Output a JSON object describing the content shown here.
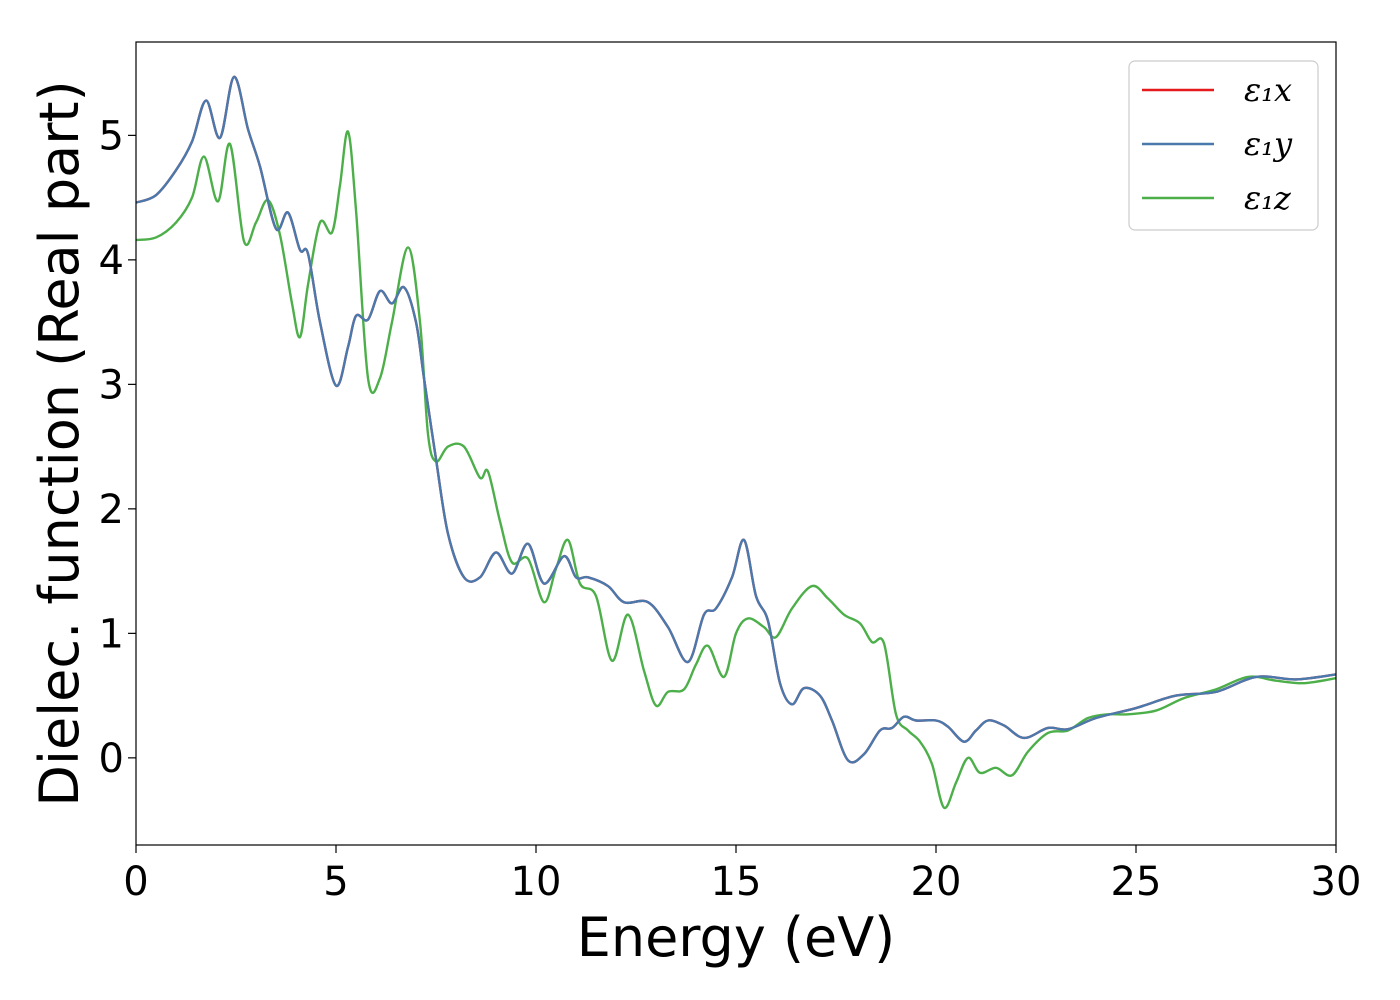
{
  "chart_data": {
    "type": "line",
    "title": "",
    "xlabel": "Energy (eV)",
    "ylabel": "Dielec. function (Real part)",
    "xlim": [
      0,
      30
    ],
    "ylim": [
      -0.7,
      5.75
    ],
    "xticks": [
      0,
      5,
      10,
      15,
      20,
      25,
      30
    ],
    "yticks": [
      0,
      1,
      2,
      3,
      4,
      5
    ],
    "grid": false,
    "legend_position": "top-right",
    "series": [
      {
        "name": "ε₁x",
        "color": "#e41a1c",
        "x": [
          0,
          0.5,
          1.0,
          1.4,
          1.75,
          2.1,
          2.45,
          2.8,
          3.1,
          3.5,
          3.8,
          4.1,
          4.3,
          4.6,
          5.0,
          5.3,
          5.5,
          5.8,
          6.1,
          6.4,
          6.7,
          7.0,
          7.2,
          7.5,
          7.8,
          8.2,
          8.6,
          9.0,
          9.4,
          9.8,
          10.2,
          10.7,
          11.0,
          11.3,
          11.8,
          12.2,
          12.8,
          13.3,
          13.8,
          14.2,
          14.5,
          14.9,
          15.2,
          15.5,
          15.8,
          16.1,
          16.4,
          16.7,
          17.1,
          17.4,
          17.8,
          18.2,
          18.6,
          18.9,
          19.2,
          19.5,
          20.0,
          20.3,
          20.7,
          21.0,
          21.3,
          21.7,
          22.2,
          22.8,
          23.3,
          24.0,
          25.0,
          26.0,
          27.0,
          28.0,
          29.0,
          30.0
        ],
        "y": [
          4.46,
          4.52,
          4.72,
          4.95,
          5.28,
          4.98,
          5.47,
          5.05,
          4.75,
          4.25,
          4.38,
          4.08,
          4.05,
          3.5,
          2.99,
          3.3,
          3.55,
          3.52,
          3.75,
          3.65,
          3.78,
          3.5,
          3.05,
          2.4,
          1.8,
          1.45,
          1.45,
          1.65,
          1.48,
          1.72,
          1.4,
          1.62,
          1.45,
          1.45,
          1.38,
          1.25,
          1.25,
          1.05,
          0.77,
          1.15,
          1.2,
          1.45,
          1.75,
          1.3,
          1.1,
          0.6,
          0.43,
          0.56,
          0.5,
          0.3,
          -0.02,
          0.03,
          0.22,
          0.24,
          0.33,
          0.3,
          0.3,
          0.25,
          0.13,
          0.22,
          0.3,
          0.26,
          0.16,
          0.24,
          0.23,
          0.32,
          0.4,
          0.5,
          0.53,
          0.65,
          0.63,
          0.67
        ]
      },
      {
        "name": "ε₁y",
        "color": "#4a79ad",
        "x": [
          0,
          0.5,
          1.0,
          1.4,
          1.75,
          2.1,
          2.45,
          2.8,
          3.1,
          3.5,
          3.8,
          4.1,
          4.3,
          4.6,
          5.0,
          5.3,
          5.5,
          5.8,
          6.1,
          6.4,
          6.7,
          7.0,
          7.2,
          7.5,
          7.8,
          8.2,
          8.6,
          9.0,
          9.4,
          9.8,
          10.2,
          10.7,
          11.0,
          11.3,
          11.8,
          12.2,
          12.8,
          13.3,
          13.8,
          14.2,
          14.5,
          14.9,
          15.2,
          15.5,
          15.8,
          16.1,
          16.4,
          16.7,
          17.1,
          17.4,
          17.8,
          18.2,
          18.6,
          18.9,
          19.2,
          19.5,
          20.0,
          20.3,
          20.7,
          21.0,
          21.3,
          21.7,
          22.2,
          22.8,
          23.3,
          24.0,
          25.0,
          26.0,
          27.0,
          28.0,
          29.0,
          30.0
        ],
        "y": [
          4.46,
          4.52,
          4.72,
          4.95,
          5.28,
          4.98,
          5.47,
          5.05,
          4.75,
          4.25,
          4.38,
          4.08,
          4.05,
          3.5,
          2.99,
          3.3,
          3.55,
          3.52,
          3.75,
          3.65,
          3.78,
          3.5,
          3.05,
          2.4,
          1.8,
          1.45,
          1.45,
          1.65,
          1.48,
          1.72,
          1.4,
          1.62,
          1.45,
          1.45,
          1.38,
          1.25,
          1.25,
          1.05,
          0.77,
          1.15,
          1.2,
          1.45,
          1.75,
          1.3,
          1.1,
          0.6,
          0.43,
          0.56,
          0.5,
          0.3,
          -0.02,
          0.03,
          0.22,
          0.24,
          0.33,
          0.3,
          0.3,
          0.25,
          0.13,
          0.22,
          0.3,
          0.26,
          0.16,
          0.24,
          0.23,
          0.32,
          0.4,
          0.5,
          0.53,
          0.65,
          0.63,
          0.67
        ]
      },
      {
        "name": "ε₁z",
        "color": "#4daf4a",
        "x": [
          0,
          0.5,
          1.0,
          1.4,
          1.7,
          2.05,
          2.35,
          2.7,
          3.0,
          3.3,
          3.6,
          3.9,
          4.1,
          4.3,
          4.6,
          4.9,
          5.1,
          5.3,
          5.5,
          5.8,
          6.1,
          6.4,
          6.8,
          7.1,
          7.3,
          7.5,
          7.8,
          8.2,
          8.6,
          8.8,
          9.1,
          9.4,
          9.8,
          10.2,
          10.5,
          10.8,
          11.1,
          11.5,
          11.9,
          12.3,
          12.7,
          13.0,
          13.3,
          13.7,
          14.0,
          14.3,
          14.7,
          15.0,
          15.3,
          15.7,
          16.0,
          16.4,
          16.9,
          17.3,
          17.7,
          18.1,
          18.4,
          18.7,
          19.0,
          19.3,
          19.6,
          19.9,
          20.2,
          20.5,
          20.8,
          21.1,
          21.5,
          21.9,
          22.3,
          22.8,
          23.3,
          23.8,
          24.3,
          24.8,
          25.5,
          26.2,
          27.0,
          27.8,
          28.5,
          29.2,
          30.0
        ],
        "y": [
          4.16,
          4.18,
          4.3,
          4.5,
          4.83,
          4.47,
          4.93,
          4.15,
          4.3,
          4.48,
          4.2,
          3.65,
          3.38,
          3.8,
          4.3,
          4.22,
          4.6,
          5.03,
          4.4,
          3.05,
          3.05,
          3.5,
          4.1,
          3.5,
          2.6,
          2.38,
          2.5,
          2.5,
          2.25,
          2.3,
          1.9,
          1.57,
          1.6,
          1.25,
          1.52,
          1.75,
          1.4,
          1.3,
          0.78,
          1.15,
          0.7,
          0.42,
          0.53,
          0.55,
          0.75,
          0.9,
          0.65,
          1.0,
          1.12,
          1.05,
          0.97,
          1.2,
          1.38,
          1.28,
          1.15,
          1.08,
          0.93,
          0.92,
          0.35,
          0.22,
          0.13,
          -0.05,
          -0.4,
          -0.2,
          0.0,
          -0.12,
          -0.08,
          -0.14,
          0.05,
          0.2,
          0.22,
          0.32,
          0.35,
          0.35,
          0.38,
          0.48,
          0.55,
          0.65,
          0.62,
          0.6,
          0.64
        ]
      }
    ]
  }
}
